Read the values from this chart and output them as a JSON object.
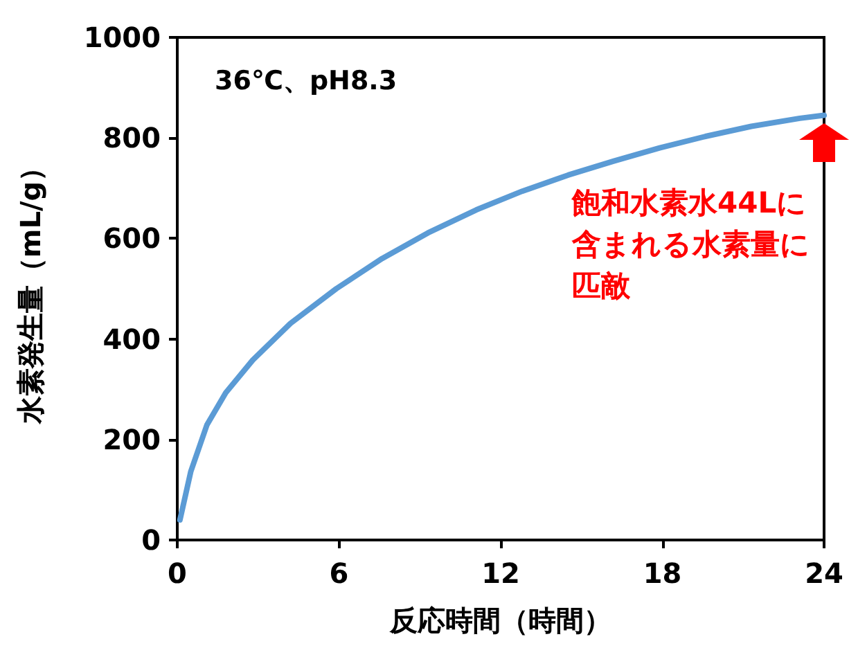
{
  "chart_data": {
    "type": "line",
    "title": "36℃、pH8.3",
    "xlabel": "反応時間（時間）",
    "ylabel": "水素発生量（mL/g）",
    "x": [
      0.1,
      0.5,
      1.1,
      1.8,
      2.8,
      4.2,
      5.9,
      7.6,
      9.3,
      11.1,
      12.8,
      14.5,
      16.2,
      17.9,
      19.6,
      21.3,
      23.1,
      24
    ],
    "series": [
      {
        "color": "#5b9bd5",
        "values": [
          40,
          136,
          229,
          293,
          358,
          431,
          500,
          560,
          611,
          657,
          694,
          726,
          754,
          780,
          803,
          823,
          839,
          845
        ]
      }
    ],
    "xlim": [
      0,
      24
    ],
    "xticks": [
      0,
      6,
      12,
      18,
      24
    ],
    "ylim": [
      0,
      1000
    ],
    "yticks": [
      0,
      200,
      400,
      600,
      800,
      1000
    ],
    "marker": "none",
    "line_style": "solid",
    "annotations": [
      {
        "text": "飽和水素水44Lに含まれる水素量に匹敵",
        "x": 24,
        "y": 845
      }
    ]
  }
}
